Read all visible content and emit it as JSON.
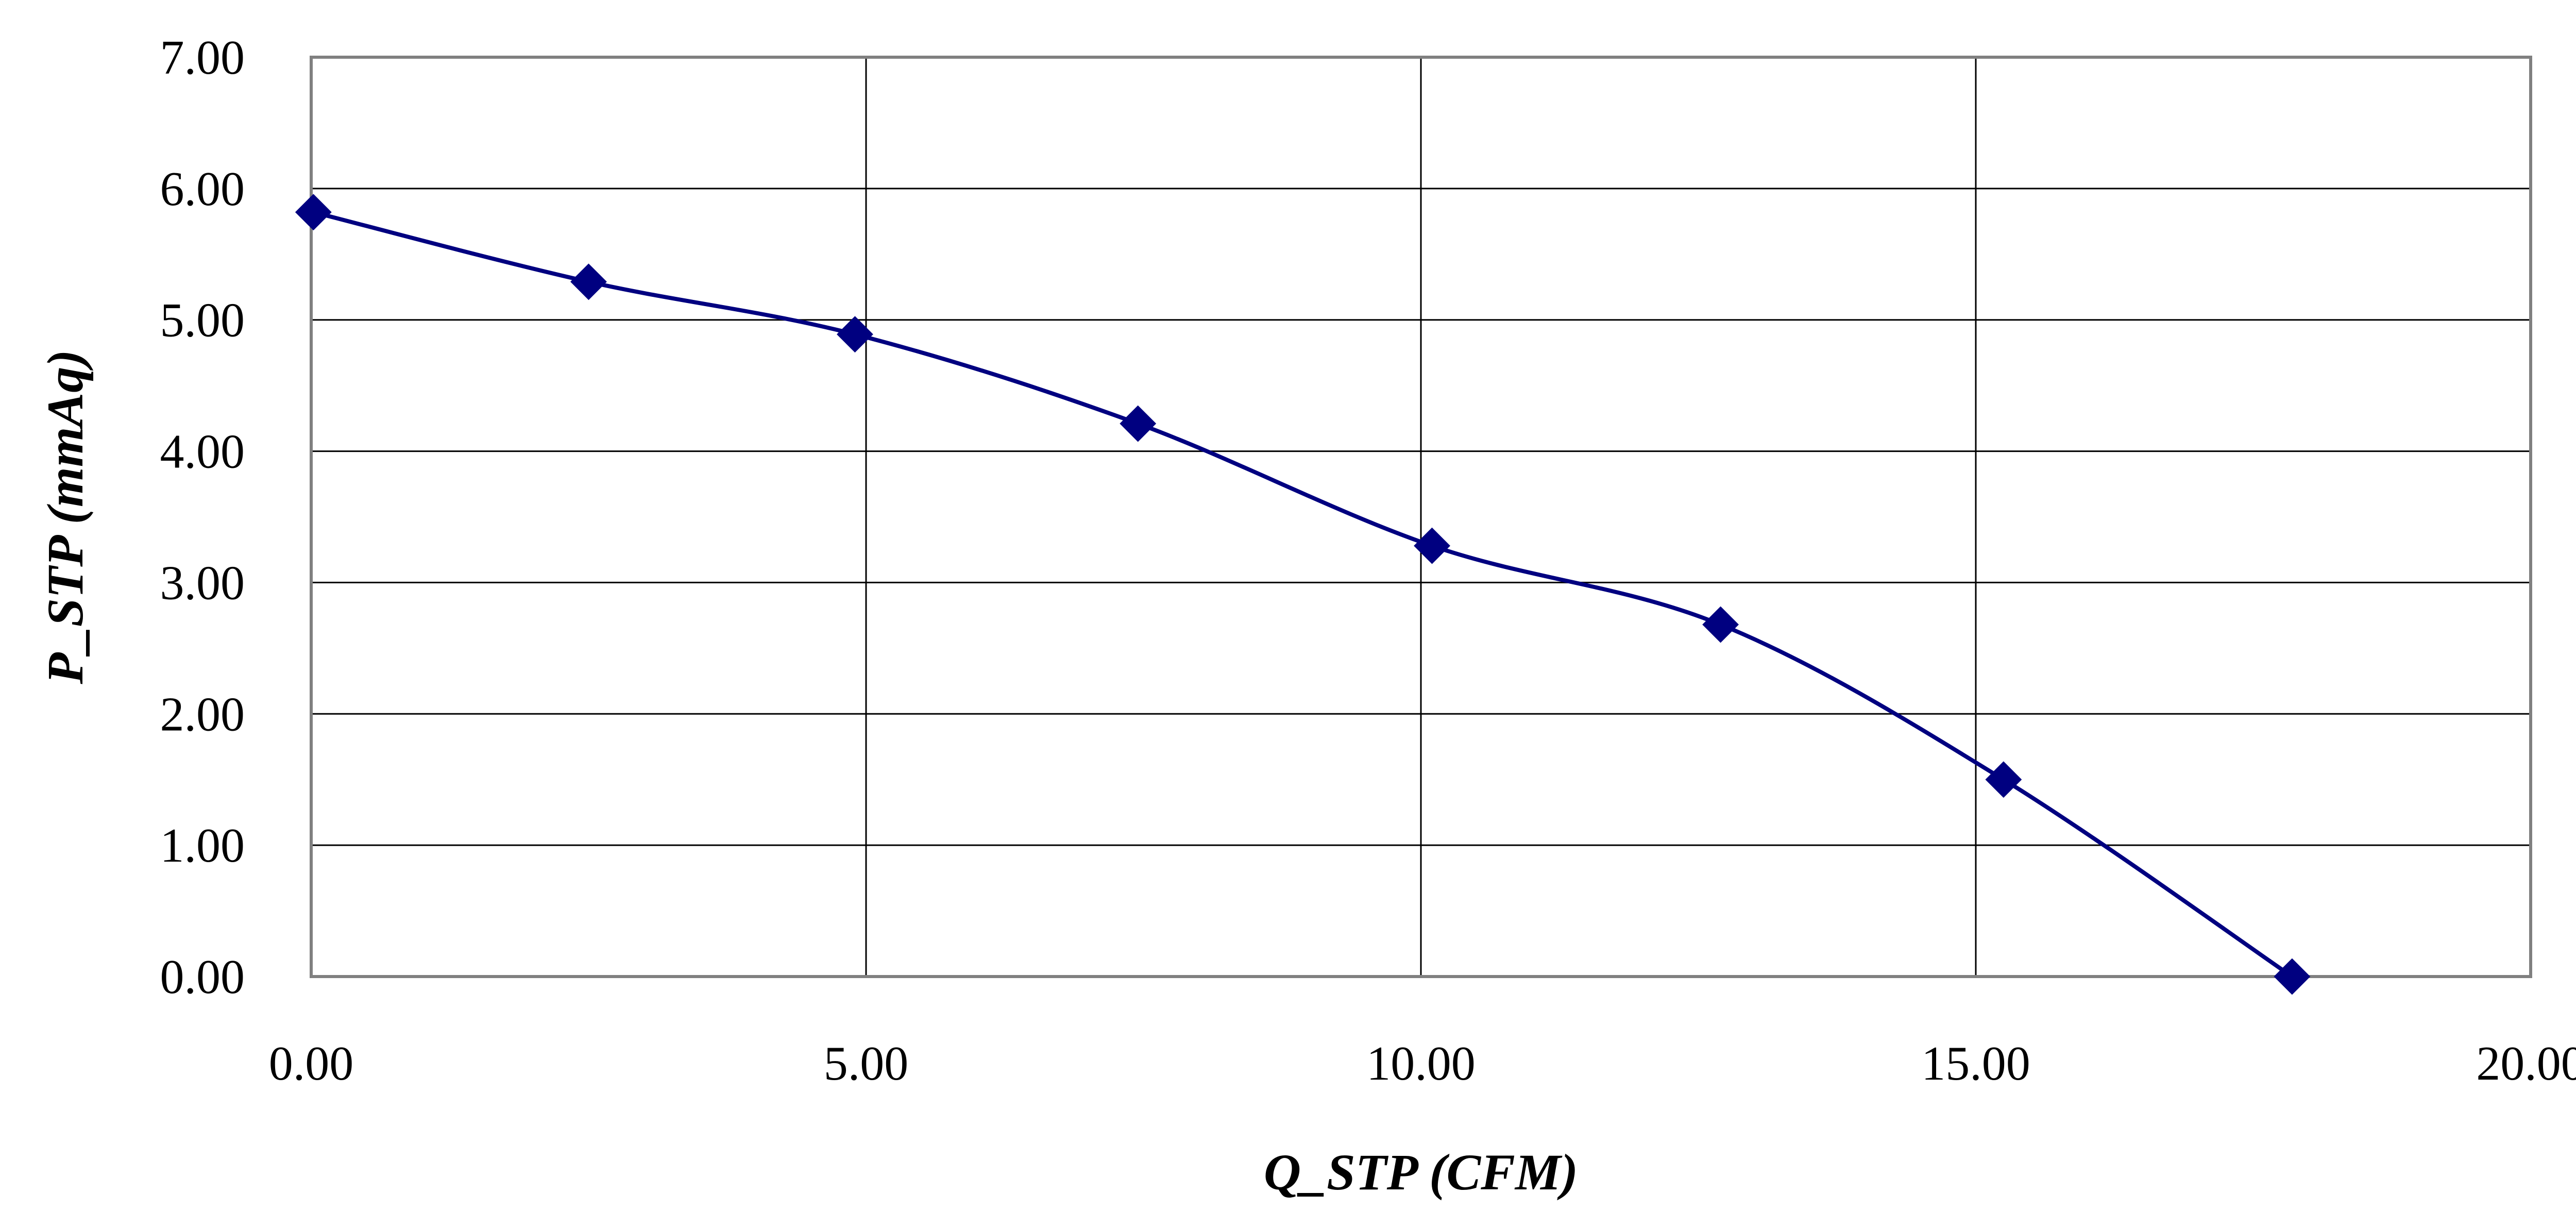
{
  "chart_data": {
    "type": "line",
    "title": "",
    "xlabel": "Q_STP (CFM)",
    "ylabel": "P_STP (mmAq)",
    "xlim": [
      0,
      20
    ],
    "ylim": [
      0,
      7
    ],
    "x_ticks": [
      "0.00",
      "5.00",
      "10.00",
      "15.00",
      "20.00"
    ],
    "y_ticks": [
      "0.00",
      "1.00",
      "2.00",
      "3.00",
      "4.00",
      "5.00",
      "6.00",
      "7.00"
    ],
    "grid": true,
    "legend": "none",
    "line_color": "#000080",
    "marker": "diamond",
    "series": [
      {
        "x": [
          0.02,
          2.5,
          4.9,
          7.45,
          10.1,
          12.7,
          15.25,
          17.85
        ],
        "y": [
          5.82,
          5.29,
          4.89,
          4.21,
          3.28,
          2.68,
          1.5,
          0.0
        ]
      }
    ]
  }
}
